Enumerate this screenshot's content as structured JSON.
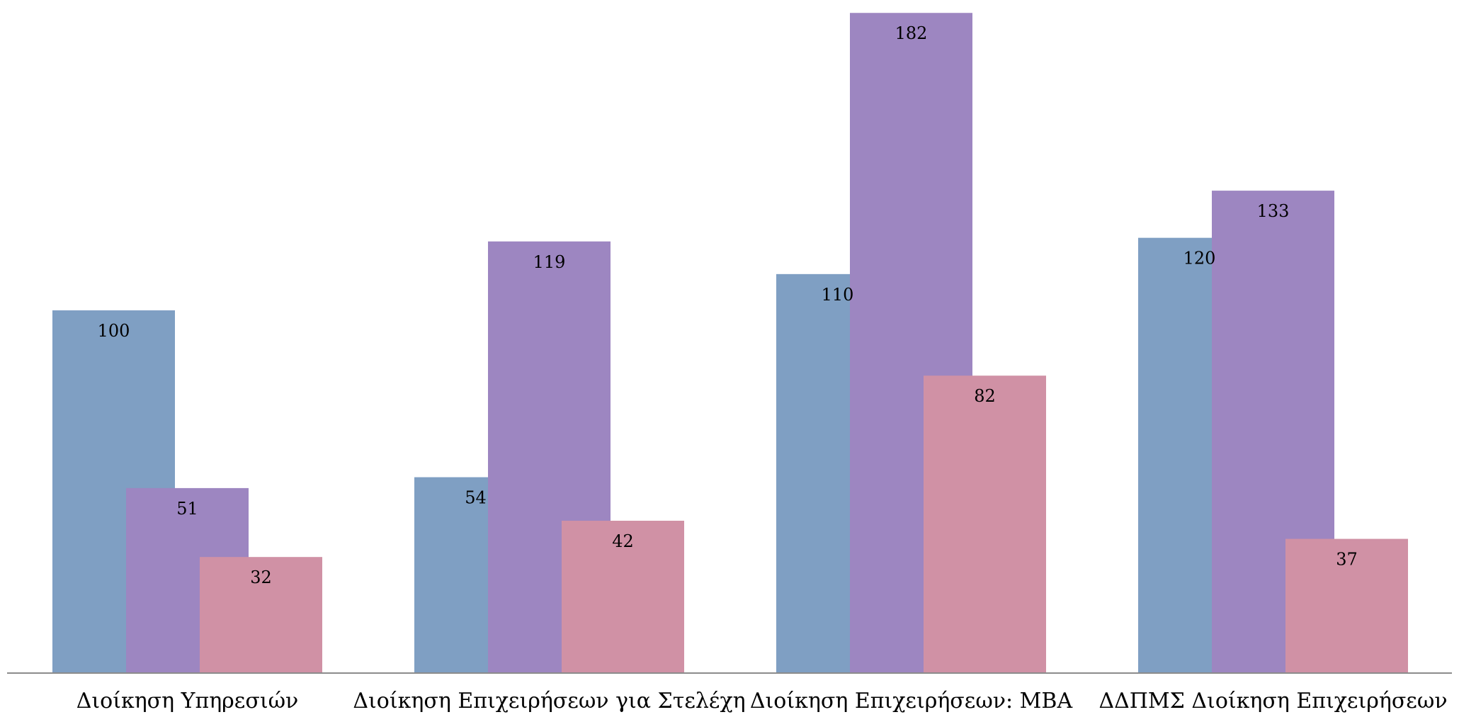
{
  "chart_data": {
    "type": "bar",
    "categories": [
      "Διοίκηση Υπηρεσιών",
      "Διοίκηση Επιχειρήσεων για Στελέχη",
      "Διοίκηση Επιχειρήσεων: MBA",
      "ΔΔΠΜΣ Διοίκηση Επιχειρήσεων"
    ],
    "series": [
      {
        "values": [
          100,
          54,
          110,
          120
        ],
        "color": "#7f9fc3"
      },
      {
        "values": [
          51,
          119,
          182,
          133
        ],
        "color": "#9d86c1"
      },
      {
        "values": [
          32,
          42,
          82,
          37
        ],
        "color": "#d091a5"
      }
    ],
    "title": "",
    "xlabel": "",
    "ylabel": "",
    "ylim": [
      0,
      184
    ],
    "grid": false,
    "legend": "none",
    "data_labels": true,
    "axis_color": "#8c8c8c"
  }
}
